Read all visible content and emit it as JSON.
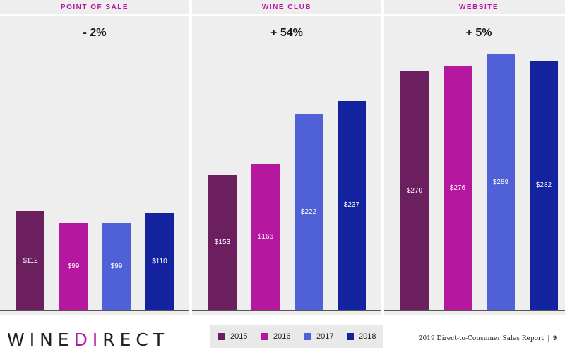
{
  "colors": {
    "2015": "#6b1f5f",
    "2016": "#b5179e",
    "2017": "#5061d8",
    "2018": "#13229e",
    "title": "#b5179e"
  },
  "chart_data": [
    {
      "type": "bar",
      "title": "POINT OF SALE",
      "subtitle": "- 2%",
      "categories": [
        "2015",
        "2016",
        "2017",
        "2018"
      ],
      "values": [
        112,
        99,
        99,
        110
      ],
      "labels": [
        "$112",
        "$99",
        "$99",
        "$110"
      ],
      "ylim": [
        0,
        300
      ]
    },
    {
      "type": "bar",
      "title": "WINE CLUB",
      "subtitle": "+ 54%",
      "categories": [
        "2015",
        "2016",
        "2017",
        "2018"
      ],
      "values": [
        153,
        166,
        222,
        237
      ],
      "labels": [
        "$153",
        "$166",
        "$222",
        "$237"
      ],
      "ylim": [
        0,
        300
      ]
    },
    {
      "type": "bar",
      "title": "WEBSITE",
      "subtitle": "+ 5%",
      "categories": [
        "2015",
        "2016",
        "2017",
        "2018"
      ],
      "values": [
        270,
        276,
        289,
        282
      ],
      "labels": [
        "$270",
        "$276",
        "$289",
        "$282"
      ],
      "ylim": [
        0,
        300
      ]
    }
  ],
  "legend": [
    "2015",
    "2016",
    "2017",
    "2018"
  ],
  "logo": {
    "left": "WINE",
    "mid": "DI",
    "right": "RECT"
  },
  "footer": {
    "text": "2019 Direct-to-Consumer Sales Report",
    "separator": "|",
    "page": "9"
  }
}
